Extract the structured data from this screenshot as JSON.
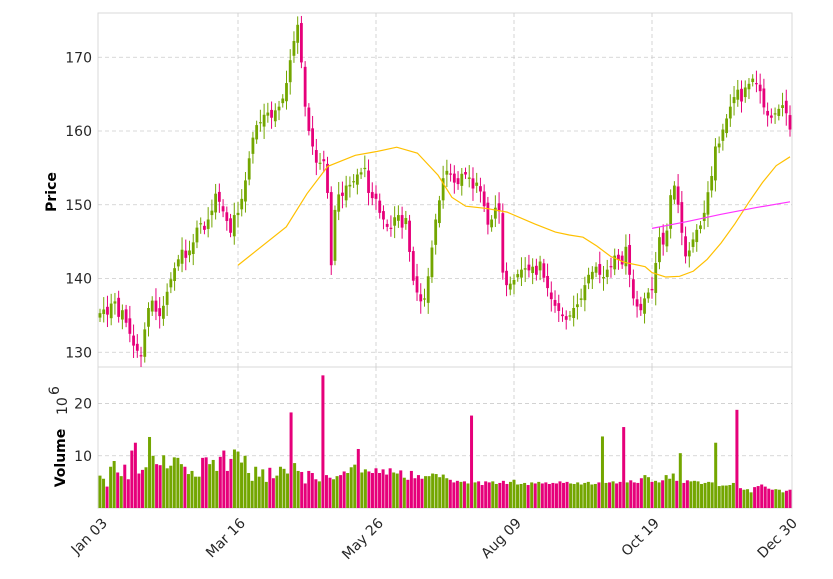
{
  "chart_data": {
    "type": "candlestick",
    "x_ticks": [
      "Jan 03",
      "Mar 16",
      "May 26",
      "Aug 09",
      "Oct 19",
      "Dec 30"
    ],
    "price_panel": {
      "ylabel": "Price",
      "yticks": [
        130,
        140,
        150,
        160,
        170
      ],
      "ylim": [
        128,
        176
      ],
      "up_color": "#73a600",
      "down_color": "#e6007a",
      "grid": true,
      "trend_price": [
        135.3,
        135.8,
        135.1,
        136.6,
        136.9,
        134.8,
        135.7,
        134.0,
        132.5,
        130.9,
        130.2,
        129.5,
        133.1,
        136.0,
        137.0,
        135.5,
        134.9,
        136.3,
        138.2,
        139.9,
        141.4,
        142.6,
        143.9,
        142.8,
        143.8,
        144.9,
        146.9,
        147.5,
        146.6,
        148.0,
        149.2,
        151.5,
        150.4,
        149.1,
        147.8,
        146.2,
        148.6,
        148.9,
        150.8,
        153.3,
        156.3,
        159.1,
        160.8,
        161.2,
        162.2,
        162.5,
        161.8,
        162.8,
        163.3,
        164.4,
        166.5,
        169.6,
        172.2,
        174.4,
        169.3,
        163.3,
        160.0,
        157.9,
        155.7,
        155.7,
        155.9,
        151.6,
        141.8,
        149.3,
        151.4,
        151.2,
        152.6,
        152.7,
        153.2,
        154.1,
        154.4,
        155.0,
        151.6,
        150.9,
        150.8,
        148.9,
        148.0,
        147.0,
        146.8,
        148.3,
        148.6,
        146.9,
        148.2,
        143.6,
        139.7,
        138.1,
        136.9,
        137.3,
        140.3,
        144.2,
        148.0,
        150.6,
        153.6,
        154.6,
        154.1,
        153.0,
        152.8,
        154.2,
        154.1,
        153.7,
        152.2,
        153.0,
        151.8,
        149.8,
        147.3,
        148.0,
        149.6,
        149.1,
        140.8,
        139.1,
        139.3,
        139.8,
        140.6,
        141.2,
        141.4,
        141.1,
        141.6,
        140.5,
        142.3,
        140.1,
        138.7,
        137.2,
        136.3,
        135.6,
        134.9,
        134.4,
        135.0,
        136.0,
        136.5,
        137.3,
        139.1,
        140.5,
        140.9,
        141.6,
        140.5,
        140.2,
        141.2,
        141.6,
        143.1,
        142.5,
        141.9,
        144.3,
        140.5,
        137.3,
        136.2,
        135.7,
        137.3,
        138.1,
        138.4,
        142.1,
        145.6,
        144.6,
        146.5,
        151.3,
        152.6,
        150.0,
        146.2,
        143.0,
        143.8,
        145.3,
        146.6,
        147.2,
        148.9,
        151.7,
        153.9,
        157.9,
        158.3,
        160.2,
        161.7,
        163.3,
        164.6,
        165.6,
        164.0,
        165.9,
        166.4,
        167.1,
        166.4,
        165.4,
        163.2,
        162.1,
        161.8,
        162.4,
        163.0,
        163.5,
        162.4,
        160.2
      ],
      "moving_average_yellow": {
        "color": "#ffc000",
        "points": [
          [
            0.2,
            141.8
          ],
          [
            0.27,
            147.0
          ],
          [
            0.3,
            151.5
          ],
          [
            0.33,
            155.2
          ],
          [
            0.37,
            156.7
          ],
          [
            0.4,
            157.2
          ],
          [
            0.43,
            157.8
          ],
          [
            0.46,
            157.0
          ],
          [
            0.49,
            154.0
          ],
          [
            0.51,
            151.0
          ],
          [
            0.53,
            149.8
          ],
          [
            0.56,
            149.5
          ],
          [
            0.59,
            149.0
          ],
          [
            0.63,
            147.4
          ],
          [
            0.66,
            146.3
          ],
          [
            0.68,
            145.9
          ],
          [
            0.7,
            145.6
          ],
          [
            0.72,
            144.4
          ],
          [
            0.74,
            143.0
          ],
          [
            0.76,
            142.2
          ],
          [
            0.79,
            141.6
          ],
          [
            0.8,
            140.8
          ],
          [
            0.82,
            140.2
          ],
          [
            0.84,
            140.3
          ],
          [
            0.86,
            141.0
          ],
          [
            0.88,
            142.6
          ],
          [
            0.9,
            144.8
          ],
          [
            0.92,
            147.4
          ],
          [
            0.94,
            150.3
          ],
          [
            0.96,
            153.0
          ],
          [
            0.98,
            155.3
          ],
          [
            1.0,
            156.5
          ]
        ]
      },
      "moving_average_magenta": {
        "color": "#ff33ff",
        "points": [
          [
            0.8,
            146.8
          ],
          [
            0.85,
            147.7
          ],
          [
            0.9,
            148.7
          ],
          [
            0.95,
            149.6
          ],
          [
            1.0,
            150.4
          ]
        ]
      }
    },
    "volume_panel": {
      "ylabel": "Volume",
      "multiplier_label": "10",
      "multiplier_exp": "6",
      "yticks": [
        10,
        20
      ],
      "ylim": [
        0,
        27
      ],
      "volume": [
        6.2,
        5.6,
        4.1,
        7.9,
        9.0,
        6.8,
        6.1,
        8.3,
        5.5,
        11.0,
        12.5,
        6.6,
        7.3,
        7.8,
        13.6,
        10.0,
        8.4,
        8.2,
        10.1,
        7.6,
        8.1,
        9.7,
        9.6,
        8.4,
        7.9,
        6.5,
        7.1,
        6.0,
        6.0,
        9.6,
        9.7,
        8.4,
        9.2,
        7.1,
        9.8,
        11.0,
        7.1,
        9.4,
        11.2,
        10.8,
        8.7,
        10.0,
        6.7,
        5.2,
        7.9,
        6.0,
        7.4,
        5.0,
        7.7,
        5.7,
        6.2,
        7.9,
        7.5,
        6.6,
        9.0,
        8.6,
        7.1,
        6.9,
        4.7,
        7.1,
        6.7,
        5.5,
        5.1,
        5.7,
        6.3,
        5.8,
        5.5,
        6.1,
        6.3,
        7.0,
        6.7,
        7.8,
        8.3,
        7.3,
        6.8,
        7.4,
        7.0,
        6.7,
        7.6,
        6.7,
        7.4,
        6.4,
        7.6,
        6.8,
        6.6,
        7.2,
        5.8,
        5.4,
        7.1,
        5.7,
        6.3,
        5.6,
        6.1,
        6.1,
        6.6,
        6.5,
        5.9,
        6.4,
        5.7,
        5.4,
        4.9,
        5.2,
        5.0,
        5.1,
        4.7,
        5.7,
        4.9,
        5.1,
        4.4,
        5.1,
        4.9,
        5.1,
        4.6,
        4.8,
        5.2,
        4.6,
        5.0,
        5.4,
        4.5,
        4.6,
        4.8,
        4.4,
        4.9,
        4.7,
        5.0,
        4.7,
        4.9,
        4.6,
        4.8,
        4.7,
        5.1,
        4.8,
        5.0,
        4.7,
        4.6,
        4.9,
        4.5,
        4.8,
        5.0,
        4.5,
        4.6,
        4.9,
        5.2,
        4.8,
        4.9,
        5.1,
        4.7,
        5.0,
        4.4,
        4.9,
        5.3,
        4.9,
        4.8,
        5.7,
        6.3,
        5.9,
        5.0,
        5.2,
        4.9,
        5.3,
        6.3,
        5.6,
        6.6,
        5.2,
        5.4,
        4.8,
        5.3,
        5.1,
        5.2,
        5.1,
        4.6,
        4.8,
        5.0,
        4.9,
        4.6,
        4.2,
        4.3,
        4.3,
        4.4,
        4.8,
        4.2,
        3.8,
        3.5,
        3.6,
        3.0,
        4.0,
        4.2,
        4.5,
        4.1,
        3.7,
        3.5,
        3.6,
        3.5,
        3.0,
        3.3,
        3.5
      ],
      "volume_spikes": [
        {
          "index": 54,
          "value": 18.3,
          "up": false
        },
        {
          "index": 63,
          "value": 25.4,
          "up": false
        },
        {
          "index": 73,
          "value": 11.3,
          "up": false
        },
        {
          "index": 105,
          "value": 17.7,
          "up": false
        },
        {
          "index": 142,
          "value": 13.7,
          "up": true
        },
        {
          "index": 148,
          "value": 15.5,
          "up": false
        },
        {
          "index": 164,
          "value": 10.5,
          "up": true
        },
        {
          "index": 174,
          "value": 12.5,
          "up": true
        },
        {
          "index": 180,
          "value": 18.8,
          "up": false
        }
      ]
    }
  }
}
